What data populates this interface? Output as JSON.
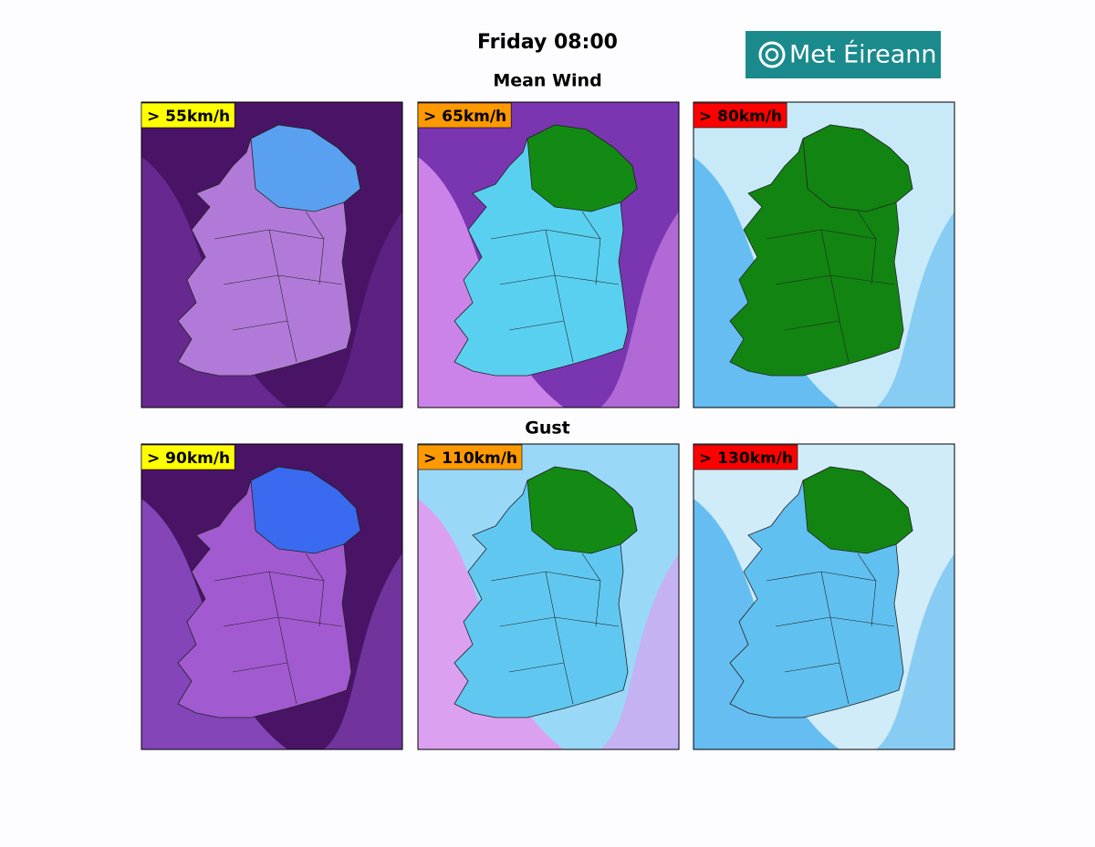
{
  "header": {
    "title": "Friday 08:00",
    "logo": "Met Éireann"
  },
  "sections": [
    {
      "title": "Mean Wind",
      "panels": [
        {
          "label": "> 55km/h"
        },
        {
          "label": "> 65km/h"
        },
        {
          "label": "> 80km/h"
        }
      ]
    },
    {
      "title": "Gust",
      "panels": [
        {
          "label": "> 90km/h"
        },
        {
          "label": "> 110km/h"
        },
        {
          "label": "> 130km/h"
        }
      ]
    }
  ]
}
